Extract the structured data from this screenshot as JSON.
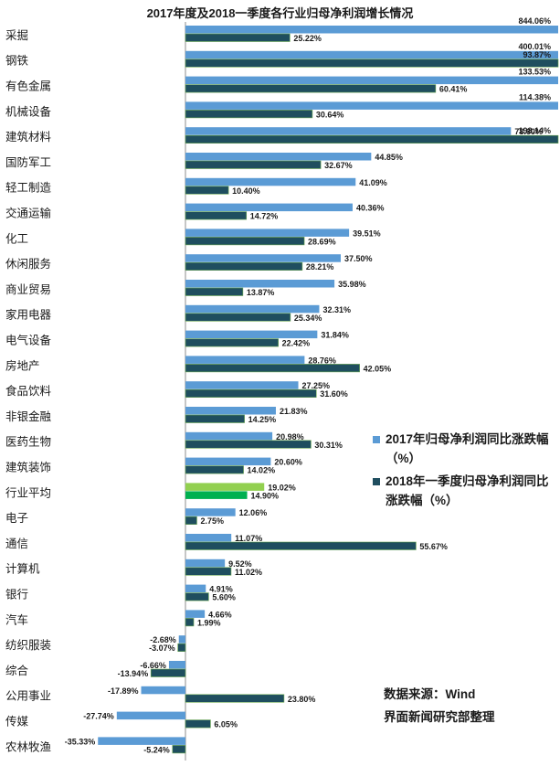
{
  "chart_data": {
    "type": "bar",
    "orientation": "horizontal",
    "title": "2017年度及2018一季度各行业归母净利润增长情况",
    "categories": [
      "采掘",
      "钢铁",
      "有色金属",
      "机械设备",
      "建筑材料",
      "国防军工",
      "轻工制造",
      "交通运输",
      "化工",
      "休闲服务",
      "商业贸易",
      "家用电器",
      "电气设备",
      "房地产",
      "食品饮料",
      "非银金融",
      "医药生物",
      "建筑装饰",
      "行业平均",
      "电子",
      "通信",
      "计算机",
      "银行",
      "汽车",
      "纺织服装",
      "综合",
      "公用事业",
      "传媒",
      "农林牧渔"
    ],
    "series": [
      {
        "name": "2017年归母净利润同比涨跌幅（%）",
        "color": "#5b9bd5",
        "values": [
          844.06,
          400.01,
          133.53,
          114.38,
          78.6,
          44.85,
          41.09,
          40.36,
          39.51,
          37.5,
          35.98,
          32.31,
          31.84,
          28.76,
          27.25,
          21.83,
          20.98,
          20.6,
          19.02,
          12.06,
          11.07,
          9.52,
          4.91,
          4.66,
          -2.68,
          -6.66,
          -17.89,
          -27.74,
          -35.33
        ],
        "labels": [
          "844.06%",
          "400.01%",
          "133.53%",
          "114.38%",
          "78.60%",
          "44.85%",
          "41.09%",
          "40.36%",
          "39.51%",
          "37.50%",
          "35.98%",
          "32.31%",
          "31.84%",
          "28.76%",
          "27.25%",
          "21.83%",
          "20.98%",
          "20.60%",
          "19.02%",
          "12.06%",
          "11.07%",
          "9.52%",
          "4.91%",
          "4.66%",
          "-2.68%",
          "-6.66%",
          "-17.89%",
          "-27.74%",
          "-35.33%"
        ]
      },
      {
        "name": "2018年一季度归母净利润同比涨跌幅（%）",
        "color": "#1f4e5f",
        "values": [
          25.22,
          93.87,
          60.41,
          30.64,
          198.14,
          32.67,
          10.4,
          14.72,
          28.69,
          28.21,
          13.87,
          25.34,
          22.42,
          42.05,
          31.6,
          14.25,
          30.31,
          14.02,
          14.9,
          2.75,
          55.67,
          11.02,
          5.6,
          1.99,
          -3.07,
          -13.94,
          23.8,
          6.05,
          -5.24
        ],
        "labels": [
          "25.22%",
          "93.87%",
          "60.41%",
          "30.64%",
          "198.14%",
          "32.67%",
          "10.40%",
          "14.72%",
          "28.69%",
          "28.21%",
          "13.87%",
          "25.34%",
          "22.42%",
          "42.05%",
          "31.60%",
          "14.25%",
          "30.31%",
          "14.02%",
          "14.90%",
          "2.75%",
          "55.67%",
          "11.02%",
          "5.60%",
          "1.99%",
          "-3.07%",
          "-13.94%",
          "23.80%",
          "6.05%",
          "-5.24%"
        ]
      }
    ],
    "highlight": {
      "category": "行业平均",
      "colors": [
        "#92d050",
        "#00b050"
      ]
    },
    "axis_clip_max": 90,
    "axis_min": -38,
    "grid": false,
    "legend_position": "right"
  },
  "legend": {
    "item1": "2017年归母净利润同比涨跌幅（%）",
    "item2": "2018年一季度归母净利润同比涨跌幅（%）"
  },
  "source": {
    "line1": "数据来源：Wind",
    "line2": "界面新闻研究部整理"
  }
}
